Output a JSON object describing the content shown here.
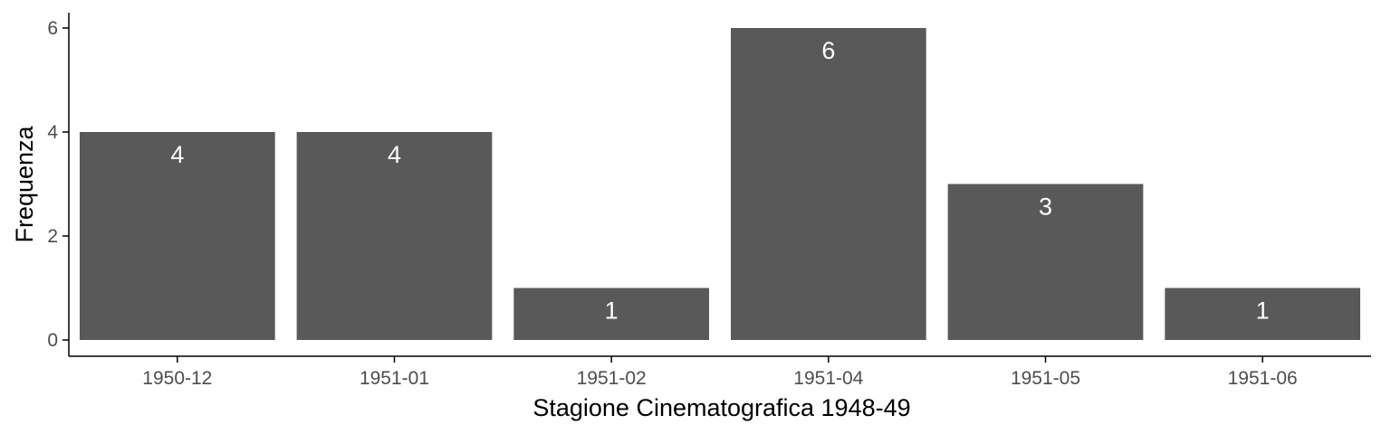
{
  "chart_data": {
    "type": "bar",
    "categories": [
      "1950-12",
      "1951-01",
      "1951-02",
      "1951-04",
      "1951-05",
      "1951-06"
    ],
    "values": [
      4,
      4,
      1,
      6,
      3,
      1
    ],
    "data_labels": [
      "4",
      "4",
      "1",
      "6",
      "3",
      "1"
    ],
    "yticks": [
      0,
      2,
      4,
      6
    ],
    "ylim": [
      0,
      6.3
    ],
    "xlabel": "Stagione Cinematografica 1948-49",
    "ylabel": "Frequenza",
    "grid": false,
    "bar_color": "#595959",
    "label_color": "#ffffff",
    "axis_color": "#000000"
  }
}
